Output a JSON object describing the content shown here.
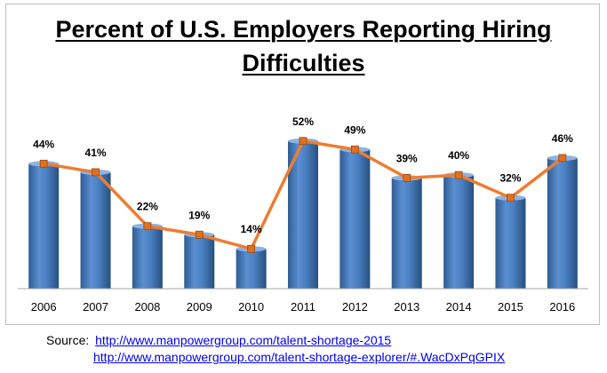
{
  "chart_data": {
    "type": "bar",
    "title_lines": [
      "Percent of U.S. Employers Reporting Hiring",
      "Difficulties"
    ],
    "categories": [
      "2006",
      "2007",
      "2008",
      "2009",
      "2010",
      "2011",
      "2012",
      "2013",
      "2014",
      "2015",
      "2016"
    ],
    "series": [
      {
        "values": [
          44,
          41,
          22,
          19,
          14,
          52,
          49,
          39,
          40,
          32,
          46
        ]
      }
    ],
    "data_labels": [
      "44%",
      "41%",
      "22%",
      "19%",
      "14%",
      "52%",
      "49%",
      "39%",
      "40%",
      "32%",
      "46%"
    ],
    "overlay_line": true,
    "ylim": [
      0,
      66
    ],
    "grid": false,
    "colors": {
      "bar": "#4f81bd",
      "line": "#ed7d31",
      "marker": "#e07020"
    }
  },
  "source": {
    "label": "Source:",
    "links": [
      "http://www.manpowergroup.com/talent-shortage-2015",
      "http://www.manpowergroup.com/talent-shortage-explorer/#.WacDxPqGPIX"
    ]
  }
}
